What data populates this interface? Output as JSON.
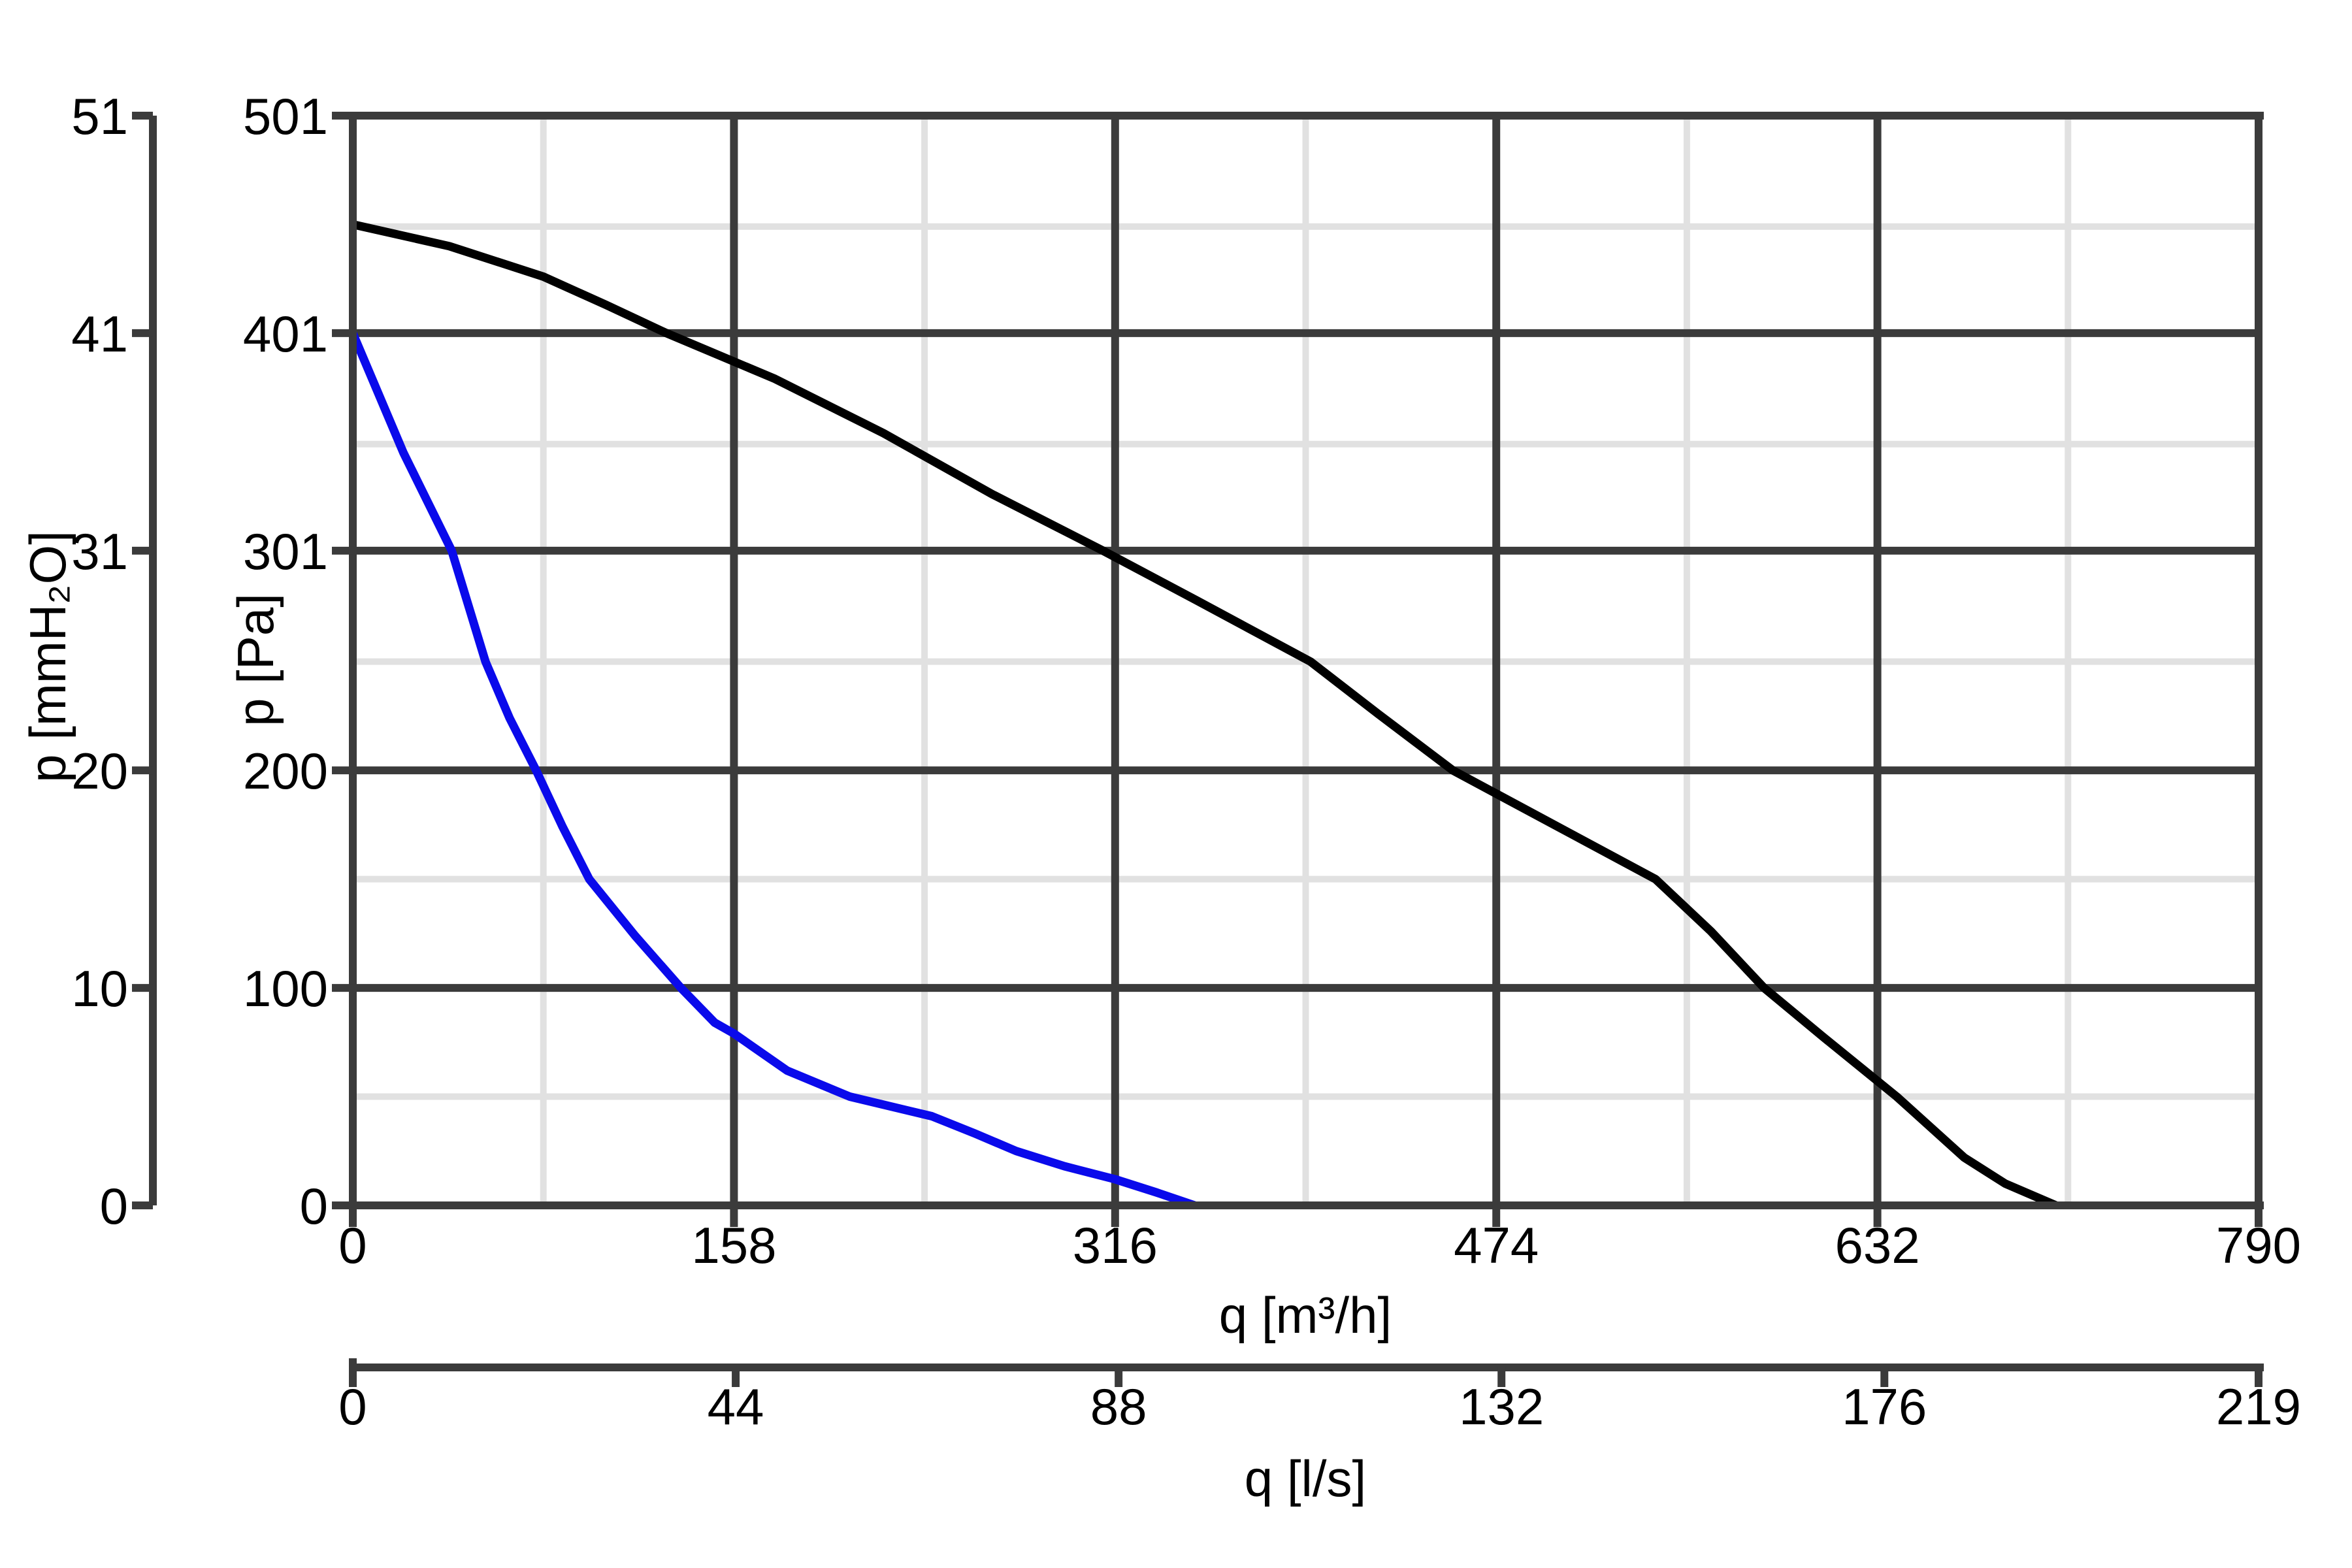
{
  "chart_data": {
    "type": "line",
    "title": "",
    "x_axis_primary": {
      "label": "q [m³/h]",
      "ticks": [
        0,
        158,
        316,
        474,
        632,
        790
      ],
      "tick_labels": [
        "0",
        "158",
        "316",
        "474",
        "632",
        "790"
      ],
      "minor_gridlines": [
        79,
        237,
        395,
        553,
        711
      ],
      "major_gridlines": [
        158,
        316,
        474,
        632
      ],
      "range": [
        0,
        790
      ]
    },
    "x_axis_secondary": {
      "label": "q [l/s]",
      "ticks": [
        0,
        44,
        88,
        132,
        176,
        219
      ],
      "tick_labels": [
        "0",
        "44",
        "88",
        "132",
        "176",
        "219"
      ],
      "range": [
        0,
        219
      ]
    },
    "y_axis_inner": {
      "label": "p [Pa]",
      "ticks": [
        0,
        100,
        200,
        301,
        401,
        501
      ],
      "tick_labels": [
        "0",
        "100",
        "200",
        "301",
        "401",
        "501"
      ],
      "minor_gridlines": [
        50,
        150,
        250,
        350,
        450
      ],
      "major_gridlines": [
        100,
        200,
        301,
        401
      ],
      "range": [
        0,
        501
      ]
    },
    "y_axis_outer": {
      "label": "p [mmH₂O]",
      "ticks": [
        0,
        10,
        20,
        31,
        41,
        51
      ],
      "tick_labels": [
        "0",
        "10",
        "20",
        "31",
        "41",
        "51"
      ],
      "range": [
        0,
        51
      ]
    },
    "grid": {
      "major": true,
      "minor": true,
      "legend": false
    },
    "series": [
      {
        "name": "black-curve",
        "color": "#000000",
        "points": [
          [
            0,
            451
          ],
          [
            40,
            441
          ],
          [
            79,
            427
          ],
          [
            105,
            414
          ],
          [
            130,
            401
          ],
          [
            175,
            380
          ],
          [
            220,
            355
          ],
          [
            265,
            327
          ],
          [
            311,
            301
          ],
          [
            350,
            278
          ],
          [
            397,
            250
          ],
          [
            425,
            226
          ],
          [
            456,
            200
          ],
          [
            498,
            175
          ],
          [
            540,
            150
          ],
          [
            563,
            126
          ],
          [
            585,
            100
          ],
          [
            610,
            77
          ],
          [
            640,
            50
          ],
          [
            668,
            22
          ],
          [
            685,
            10
          ],
          [
            706,
            0
          ]
        ]
      },
      {
        "name": "blue-curve",
        "color": "#0a0aeb",
        "points": [
          [
            0,
            401
          ],
          [
            21,
            346
          ],
          [
            41,
            301
          ],
          [
            55,
            250
          ],
          [
            65,
            224
          ],
          [
            76,
            200
          ],
          [
            87,
            174
          ],
          [
            98,
            150
          ],
          [
            117,
            124
          ],
          [
            136,
            100
          ],
          [
            150,
            84
          ],
          [
            158,
            79
          ],
          [
            180,
            62
          ],
          [
            206,
            50
          ],
          [
            240,
            41
          ],
          [
            258,
            33
          ],
          [
            275,
            25
          ],
          [
            295,
            18
          ],
          [
            316,
            12
          ],
          [
            333,
            6
          ],
          [
            349,
            0
          ]
        ]
      }
    ]
  },
  "colors": {
    "background": "#ffffff",
    "frame": "#3b3b3b",
    "major_grid": "#3b3b3b",
    "minor_grid": "#e1e1e1",
    "tick_text": "#000000"
  }
}
